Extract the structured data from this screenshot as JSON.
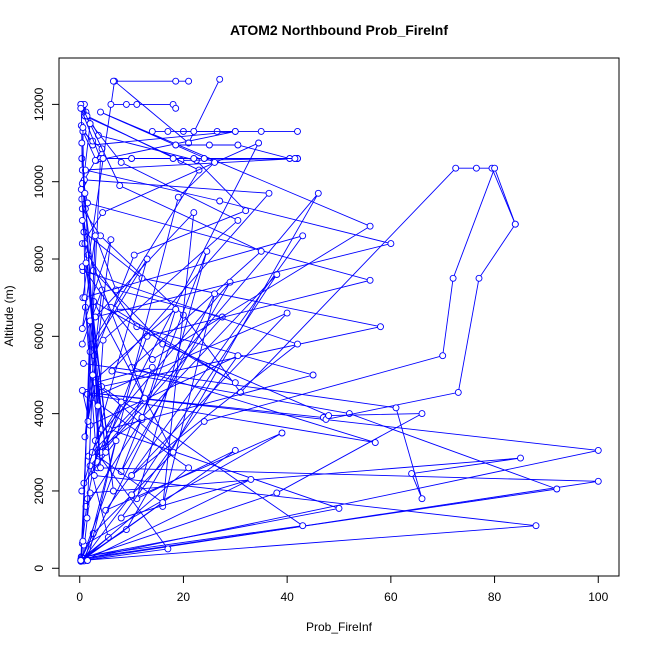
{
  "chart_data": {
    "type": "line",
    "title": "ATOM2 Northbound Prob_FireInf",
    "xlabel": "Prob_FireInf",
    "ylabel": "Altitude (m)",
    "xlim": [
      -4,
      104
    ],
    "ylim": [
      -200,
      13200
    ],
    "xticks": [
      0,
      20,
      40,
      60,
      80,
      100
    ],
    "xtick_labels": [
      "0",
      "20",
      "40",
      "60",
      "80",
      "100"
    ],
    "yticks": [
      0,
      2000,
      4000,
      6000,
      8000,
      10000,
      12000
    ],
    "ytick_labels": [
      "0",
      "2000",
      "4000",
      "6000",
      "8000",
      "10000",
      "12000"
    ],
    "grid": false,
    "legend": "none",
    "marker": "open-circle",
    "color": "#0000ff",
    "series": [
      {
        "x": [
          0.3,
          0.5,
          1.5,
          4.2,
          2.8,
          10.5,
          32.0,
          22.5,
          3.6,
          1.2,
          0.6,
          0.2
        ],
        "y": [
          210,
          640,
          1800,
          3600,
          5500,
          8100,
          9250,
          10550,
          11200,
          11800,
          11950,
          12000
        ]
      },
      {
        "x": [
          0.2,
          5.5,
          2.0,
          27.5,
          7.0,
          1.1,
          0.4,
          0.6,
          3.2,
          30.0,
          2.5,
          0.3
        ],
        "y": [
          230,
          800,
          2650,
          6500,
          7200,
          9300,
          10600,
          11300,
          10550,
          11300,
          10950,
          11450
        ]
      },
      {
        "x": [
          0.2,
          88.0,
          2.8,
          4.5,
          30.5,
          8.0,
          1.0,
          19.5,
          42.0,
          0.5,
          0.3
        ],
        "y": [
          200,
          1100,
          2400,
          5900,
          9000,
          10500,
          11700,
          10550,
          10600,
          10300,
          11900
        ]
      },
      {
        "x": [
          0.3,
          100.0,
          3.4,
          13.0,
          56.0,
          1.5,
          0.7,
          2.0,
          0.4
        ],
        "y": [
          220,
          2250,
          2600,
          6000,
          7450,
          9450,
          10000,
          11500,
          12000
        ]
      },
      {
        "x": [
          1.0,
          92.0,
          52.0,
          6.2,
          36.5,
          0.9,
          4.3,
          2.5,
          0.6
        ],
        "y": [
          260,
          2050,
          4000,
          5100,
          9700,
          10050,
          10850,
          11050,
          11300
        ]
      },
      {
        "x": [
          0.8,
          100.0,
          1.2,
          47.0,
          47.5,
          73.0,
          77.0,
          84.0,
          79.5,
          76.5,
          72.5,
          31.0,
          20.0,
          4.0,
          0.5
        ],
        "y": [
          240,
          3050,
          4550,
          3900,
          3850,
          4550,
          7500,
          8900,
          10350,
          10350,
          10350,
          4550,
          6550,
          8600,
          9300
        ]
      },
      {
        "x": [
          0.6,
          2.0,
          85.0,
          64.0,
          66.0,
          61.0,
          0.7
        ],
        "y": [
          250,
          1950,
          2850,
          2450,
          1800,
          4150,
          5300
        ]
      },
      {
        "x": [
          0.3,
          43.0,
          4.2,
          58.0,
          12.0,
          0.8
        ],
        "y": [
          300,
          1100,
          4700,
          6250,
          7500,
          8700
        ]
      },
      {
        "x": [
          0.3,
          50.0,
          5.6,
          45.0,
          11.0,
          1.6,
          0.4
        ],
        "y": [
          280,
          1550,
          3600,
          5000,
          6250,
          8100,
          9550
        ]
      },
      {
        "x": [
          0.6,
          17.0,
          3.8,
          2.2,
          23.0,
          1.4,
          0.9
        ],
        "y": [
          200,
          500,
          2900,
          5800,
          10300,
          11700,
          12000
        ]
      },
      {
        "x": [
          0.4,
          38.0,
          66.0,
          48.0,
          16.0,
          2.6,
          0.5
        ],
        "y": [
          250,
          1950,
          4000,
          3950,
          5800,
          7700,
          9950
        ]
      },
      {
        "x": [
          0.2,
          2.6,
          24.0,
          70.0,
          72.0,
          80.0,
          84.0
        ],
        "y": [
          200,
          900,
          3800,
          5500,
          7500,
          10350,
          8900
        ]
      },
      {
        "x": [
          0.5,
          9.0,
          46.0,
          4.0,
          34.5,
          4.4,
          0.5
        ],
        "y": [
          260,
          1000,
          9700,
          3000,
          11000,
          9200,
          8400
        ]
      },
      {
        "x": [
          0.4,
          1.5,
          57.0,
          10.0,
          35.0,
          7.7,
          2.0,
          0.2
        ],
        "y": [
          200,
          4500,
          3250,
          5200,
          8200,
          9900,
          11500,
          12000
        ]
      },
      {
        "x": [
          0.8,
          39.0,
          5.0,
          43.0,
          0.6,
          6.7,
          21.0,
          27.0
        ],
        "y": [
          600,
          3500,
          1500,
          8600,
          7000,
          12600,
          11000,
          12650
        ]
      },
      {
        "x": [
          0.3,
          21.0,
          2.1,
          40.0,
          10.0,
          42.0,
          0.6
        ],
        "y": [
          190,
          2600,
          4400,
          6600,
          2400,
          5800,
          7700
        ]
      },
      {
        "x": [
          1.2,
          12.0,
          18.5,
          3.1,
          1.0,
          4.3,
          0.5
        ],
        "y": [
          1600,
          3850,
          6700,
          4900,
          3400,
          7200,
          5800
        ]
      },
      {
        "x": [
          0.3,
          30.0,
          11.0,
          24.5,
          8.0,
          29.0,
          3.0,
          1.1
        ],
        "y": [
          200,
          3050,
          1800,
          8200,
          2500,
          7400,
          3300,
          6750
        ]
      },
      {
        "x": [
          0.2,
          14.0,
          3.0,
          18.0,
          2.7,
          30.0,
          6.7,
          18.5
        ],
        "y": [
          180,
          5200,
          4800,
          3000,
          6900,
          4800,
          6700,
          6700
        ]
      },
      {
        "x": [
          0.5,
          10.0,
          38.0,
          12.0,
          1.7,
          8.0,
          0.4
        ],
        "y": [
          200,
          1900,
          7600,
          3900,
          2900,
          4300,
          2000
        ]
      },
      {
        "x": [
          1.0,
          19.0,
          26.0,
          4.0,
          56.0,
          14.0,
          6.0,
          0.5
        ],
        "y": [
          200,
          9600,
          10500,
          11800,
          8850,
          5400,
          6750,
          7800
        ]
      },
      {
        "x": [
          0.6,
          26.0,
          16.0,
          22.0,
          3.0,
          60.0,
          27.0,
          1.1
        ],
        "y": [
          210,
          7100,
          1600,
          9200,
          6500,
          8400,
          9500,
          10300
        ]
      },
      {
        "x": [
          0.8,
          33.0,
          8.0,
          30.5,
          2.0,
          0.5
        ],
        "y": [
          190,
          2300,
          1300,
          5500,
          3700,
          4600
        ]
      },
      {
        "x": [
          0.4,
          16.0,
          2.4,
          12.5,
          1.0,
          0.3
        ],
        "y": [
          200,
          1700,
          3000,
          4400,
          8400,
          9800
        ]
      },
      {
        "x": [
          1.5,
          7.0,
          0.8,
          13.0,
          2.0,
          1.0,
          0.6
        ],
        "y": [
          200,
          3300,
          2200,
          8000,
          5600,
          7000,
          11400
        ]
      },
      {
        "x": [
          0.2,
          3.0,
          0.5,
          6.0,
          1.6,
          4.0,
          0.2
        ],
        "y": [
          200,
          8600,
          6200,
          8500,
          3800,
          10600,
          11900
        ]
      },
      {
        "x": [
          0.6,
          2.0,
          5.0,
          1.2,
          6.5,
          0.5
        ],
        "y": [
          700,
          6400,
          3000,
          7900,
          2000,
          9000
        ]
      },
      {
        "x": [
          1.4,
          2.5,
          4.0,
          1.0,
          3.5,
          0.4
        ],
        "y": [
          1300,
          5000,
          2600,
          9700,
          4200,
          11000
        ]
      },
      {
        "x": [
          20.0,
          26.5,
          35.0,
          42.0
        ],
        "y": [
          11300,
          11300,
          11300,
          11300
        ]
      },
      {
        "x": [
          14.0,
          17.0,
          22.0,
          30.0
        ],
        "y": [
          11300,
          11300,
          11300,
          11300
        ]
      },
      {
        "x": [
          18.5,
          25.0,
          30.5,
          40.5,
          42.0
        ],
        "y": [
          10950,
          10950,
          10950,
          10600,
          10600
        ]
      },
      {
        "x": [
          6.0,
          9.0,
          11.0,
          18.0,
          18.5
        ],
        "y": [
          12000,
          12000,
          12000,
          12000,
          11900
        ]
      },
      {
        "x": [
          6.5,
          18.5,
          21.0
        ],
        "y": [
          12600,
          12600,
          12600
        ]
      },
      {
        "x": [
          3.0,
          4.5,
          10.0,
          18.0,
          22.0,
          24.0,
          41.5
        ],
        "y": [
          10550,
          10600,
          10600,
          10600,
          10600,
          10600,
          10600
        ]
      }
    ]
  }
}
